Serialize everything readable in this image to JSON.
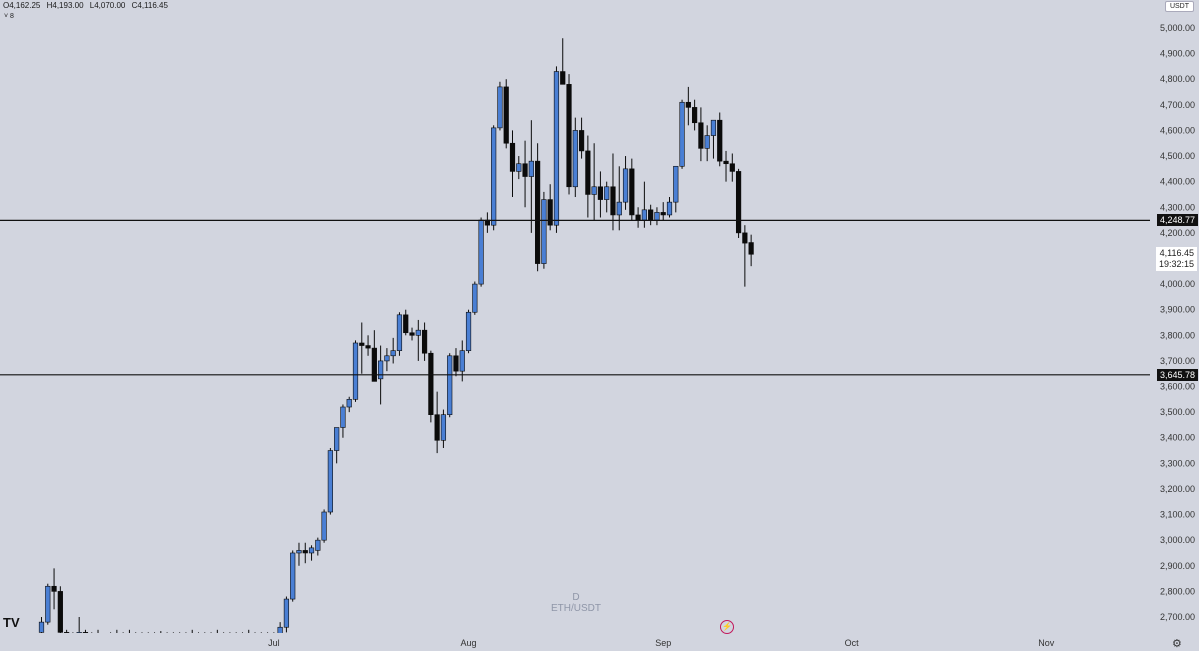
{
  "header": {
    "open": "O4,162.25",
    "high": "H4,193.00",
    "low": "L4,070.00",
    "close": "C4,116.45",
    "collapse_label": "˅ 8",
    "currency": "USDT"
  },
  "watermark": {
    "line1": "D",
    "line2": "ETH/USDT"
  },
  "logo": "TV",
  "settings_icon": "gear-icon",
  "colors": {
    "background": "#d2d5df",
    "up": "#4a7fd4",
    "down": "#0b0b0b",
    "hline": "#111111"
  },
  "chart_data": {
    "type": "candlestick",
    "title": "",
    "ylim": [
      2650,
      5050
    ],
    "y_ticks": [
      2700,
      2800,
      2900,
      3000,
      3100,
      3200,
      3300,
      3400,
      3500,
      3600,
      3700,
      3800,
      3900,
      4000,
      4100,
      4200,
      4300,
      4400,
      4500,
      4600,
      4700,
      4800,
      4900,
      5000
    ],
    "y_tick_labels": [
      "2,700.00",
      "2,800.00",
      "2,900.00",
      "3,000.00",
      "3,100.00",
      "3,200.00",
      "3,300.00",
      "3,400.00",
      "3,500.00",
      "3,600.00",
      "3,700.00",
      "3,800.00",
      "3,900.00",
      "4,000.00",
      "4,100.00",
      "4,200.00",
      "4,300.00",
      "4,400.00",
      "4,500.00",
      "4,600.00",
      "4,700.00",
      "4,800.00",
      "4,900.00",
      "5,000.00"
    ],
    "x_labels": [
      {
        "label": "Jul",
        "date": "2025-07-01"
      },
      {
        "label": "Aug",
        "date": "2025-08-01"
      },
      {
        "label": "Sep",
        "date": "2025-09-01"
      },
      {
        "label": "Oct",
        "date": "2025-10-01"
      },
      {
        "label": "Nov",
        "date": "2025-11-01"
      }
    ],
    "first_date": "2025-05-25",
    "horizontal_lines": [
      {
        "value": 4248.77,
        "label": "4,248.77"
      },
      {
        "value": 3645.78,
        "label": "3,645.78"
      }
    ],
    "last_price": {
      "value": 4116.45,
      "label": "4,116.45",
      "countdown": "19:32:15"
    },
    "candles": [
      [
        2640,
        2700,
        2600,
        2680
      ],
      [
        2680,
        2830,
        2670,
        2820
      ],
      [
        2820,
        2890,
        2730,
        2800
      ],
      [
        2800,
        2820,
        2620,
        2640
      ],
      [
        2640,
        2650,
        2600,
        2620
      ],
      [
        2620,
        2640,
        2600,
        2630
      ],
      [
        2630,
        2700,
        2600,
        2640
      ],
      [
        2640,
        2650,
        2600,
        2620
      ],
      [
        2620,
        2640,
        2600,
        2630
      ],
      [
        2630,
        2650,
        2600,
        2620
      ],
      [
        2620,
        2630,
        2600,
        2610
      ],
      [
        2610,
        2640,
        2600,
        2625
      ],
      [
        2625,
        2650,
        2600,
        2615
      ],
      [
        2615,
        2640,
        2600,
        2630
      ],
      [
        2630,
        2650,
        2600,
        2620
      ],
      [
        2620,
        2640,
        2600,
        2610
      ],
      [
        2610,
        2640,
        2600,
        2625
      ],
      [
        2625,
        2640,
        2600,
        2615
      ],
      [
        2615,
        2640,
        2600,
        2630
      ],
      [
        2630,
        2645,
        2600,
        2620
      ],
      [
        2620,
        2640,
        2600,
        2625
      ],
      [
        2625,
        2640,
        2600,
        2610
      ],
      [
        2610,
        2640,
        2600,
        2620
      ],
      [
        2620,
        2640,
        2600,
        2630
      ],
      [
        2630,
        2650,
        2600,
        2615
      ],
      [
        2615,
        2640,
        2600,
        2625
      ],
      [
        2625,
        2640,
        2600,
        2620
      ],
      [
        2620,
        2640,
        2600,
        2630
      ],
      [
        2630,
        2650,
        2600,
        2620
      ],
      [
        2620,
        2640,
        2600,
        2625
      ],
      [
        2625,
        2640,
        2600,
        2615
      ],
      [
        2615,
        2640,
        2600,
        2620
      ],
      [
        2620,
        2640,
        2600,
        2630
      ],
      [
        2630,
        2650,
        2600,
        2620
      ],
      [
        2620,
        2640,
        2600,
        2625
      ],
      [
        2625,
        2640,
        2600,
        2615
      ],
      [
        2615,
        2640,
        2600,
        2620
      ],
      [
        2620,
        2640,
        2610,
        2630
      ],
      [
        2620,
        2680,
        2600,
        2660
      ],
      [
        2660,
        2780,
        2640,
        2770
      ],
      [
        2770,
        2960,
        2760,
        2950
      ],
      [
        2950,
        2990,
        2900,
        2960
      ],
      [
        2960,
        2990,
        2910,
        2950
      ],
      [
        2950,
        2980,
        2920,
        2970
      ],
      [
        2960,
        3010,
        2940,
        3000
      ],
      [
        3000,
        3120,
        2990,
        3110
      ],
      [
        3110,
        3360,
        3100,
        3350
      ],
      [
        3350,
        3440,
        3300,
        3440
      ],
      [
        3440,
        3530,
        3400,
        3520
      ],
      [
        3520,
        3560,
        3500,
        3550
      ],
      [
        3550,
        3780,
        3540,
        3770
      ],
      [
        3770,
        3850,
        3650,
        3760
      ],
      [
        3760,
        3800,
        3720,
        3750
      ],
      [
        3750,
        3820,
        3620,
        3620
      ],
      [
        3630,
        3760,
        3530,
        3700
      ],
      [
        3700,
        3750,
        3660,
        3720
      ],
      [
        3720,
        3790,
        3690,
        3740
      ],
      [
        3740,
        3890,
        3720,
        3880
      ],
      [
        3880,
        3900,
        3800,
        3810
      ],
      [
        3810,
        3830,
        3780,
        3800
      ],
      [
        3800,
        3860,
        3700,
        3820
      ],
      [
        3820,
        3850,
        3700,
        3730
      ],
      [
        3730,
        3740,
        3460,
        3490
      ],
      [
        3490,
        3580,
        3340,
        3390
      ],
      [
        3390,
        3510,
        3360,
        3490
      ],
      [
        3490,
        3730,
        3480,
        3720
      ],
      [
        3720,
        3750,
        3640,
        3660
      ],
      [
        3660,
        3780,
        3620,
        3740
      ],
      [
        3740,
        3900,
        3730,
        3890
      ],
      [
        3890,
        4010,
        3880,
        4000
      ],
      [
        4000,
        4260,
        3990,
        4250
      ],
      [
        4250,
        4280,
        4200,
        4230
      ],
      [
        4230,
        4620,
        4210,
        4610
      ],
      [
        4610,
        4790,
        4600,
        4770
      ],
      [
        4770,
        4800,
        4530,
        4550
      ],
      [
        4550,
        4600,
        4340,
        4440
      ],
      [
        4440,
        4500,
        4410,
        4470
      ],
      [
        4470,
        4560,
        4300,
        4420
      ],
      [
        4420,
        4640,
        4200,
        4480
      ],
      [
        4480,
        4550,
        4050,
        4080
      ],
      [
        4080,
        4360,
        4060,
        4330
      ],
      [
        4330,
        4390,
        4210,
        4230
      ],
      [
        4230,
        4850,
        4200,
        4830
      ],
      [
        4830,
        4960,
        4780,
        4780
      ],
      [
        4780,
        4820,
        4350,
        4380
      ],
      [
        4380,
        4650,
        4340,
        4600
      ],
      [
        4600,
        4650,
        4490,
        4520
      ],
      [
        4520,
        4580,
        4260,
        4350
      ],
      [
        4350,
        4550,
        4250,
        4380
      ],
      [
        4380,
        4440,
        4260,
        4330
      ],
      [
        4330,
        4400,
        4280,
        4380
      ],
      [
        4380,
        4510,
        4210,
        4270
      ],
      [
        4270,
        4460,
        4210,
        4320
      ],
      [
        4320,
        4500,
        4290,
        4450
      ],
      [
        4450,
        4490,
        4250,
        4270
      ],
      [
        4270,
        4300,
        4220,
        4250
      ],
      [
        4250,
        4400,
        4220,
        4290
      ],
      [
        4290,
        4310,
        4230,
        4250
      ],
      [
        4250,
        4300,
        4230,
        4280
      ],
      [
        4280,
        4320,
        4250,
        4270
      ],
      [
        4270,
        4340,
        4260,
        4320
      ],
      [
        4320,
        4440,
        4280,
        4460
      ],
      [
        4460,
        4720,
        4450,
        4710
      ],
      [
        4710,
        4770,
        4620,
        4690
      ],
      [
        4690,
        4720,
        4600,
        4630
      ],
      [
        4630,
        4690,
        4480,
        4530
      ],
      [
        4530,
        4620,
        4480,
        4580
      ],
      [
        4580,
        4640,
        4490,
        4640
      ],
      [
        4640,
        4670,
        4460,
        4480
      ],
      [
        4480,
        4520,
        4400,
        4470
      ],
      [
        4470,
        4510,
        4400,
        4440
      ],
      [
        4440,
        4450,
        4180,
        4200
      ],
      [
        4200,
        4230,
        3990,
        4160
      ],
      [
        4162.25,
        4193,
        4070,
        4116.45
      ]
    ]
  }
}
